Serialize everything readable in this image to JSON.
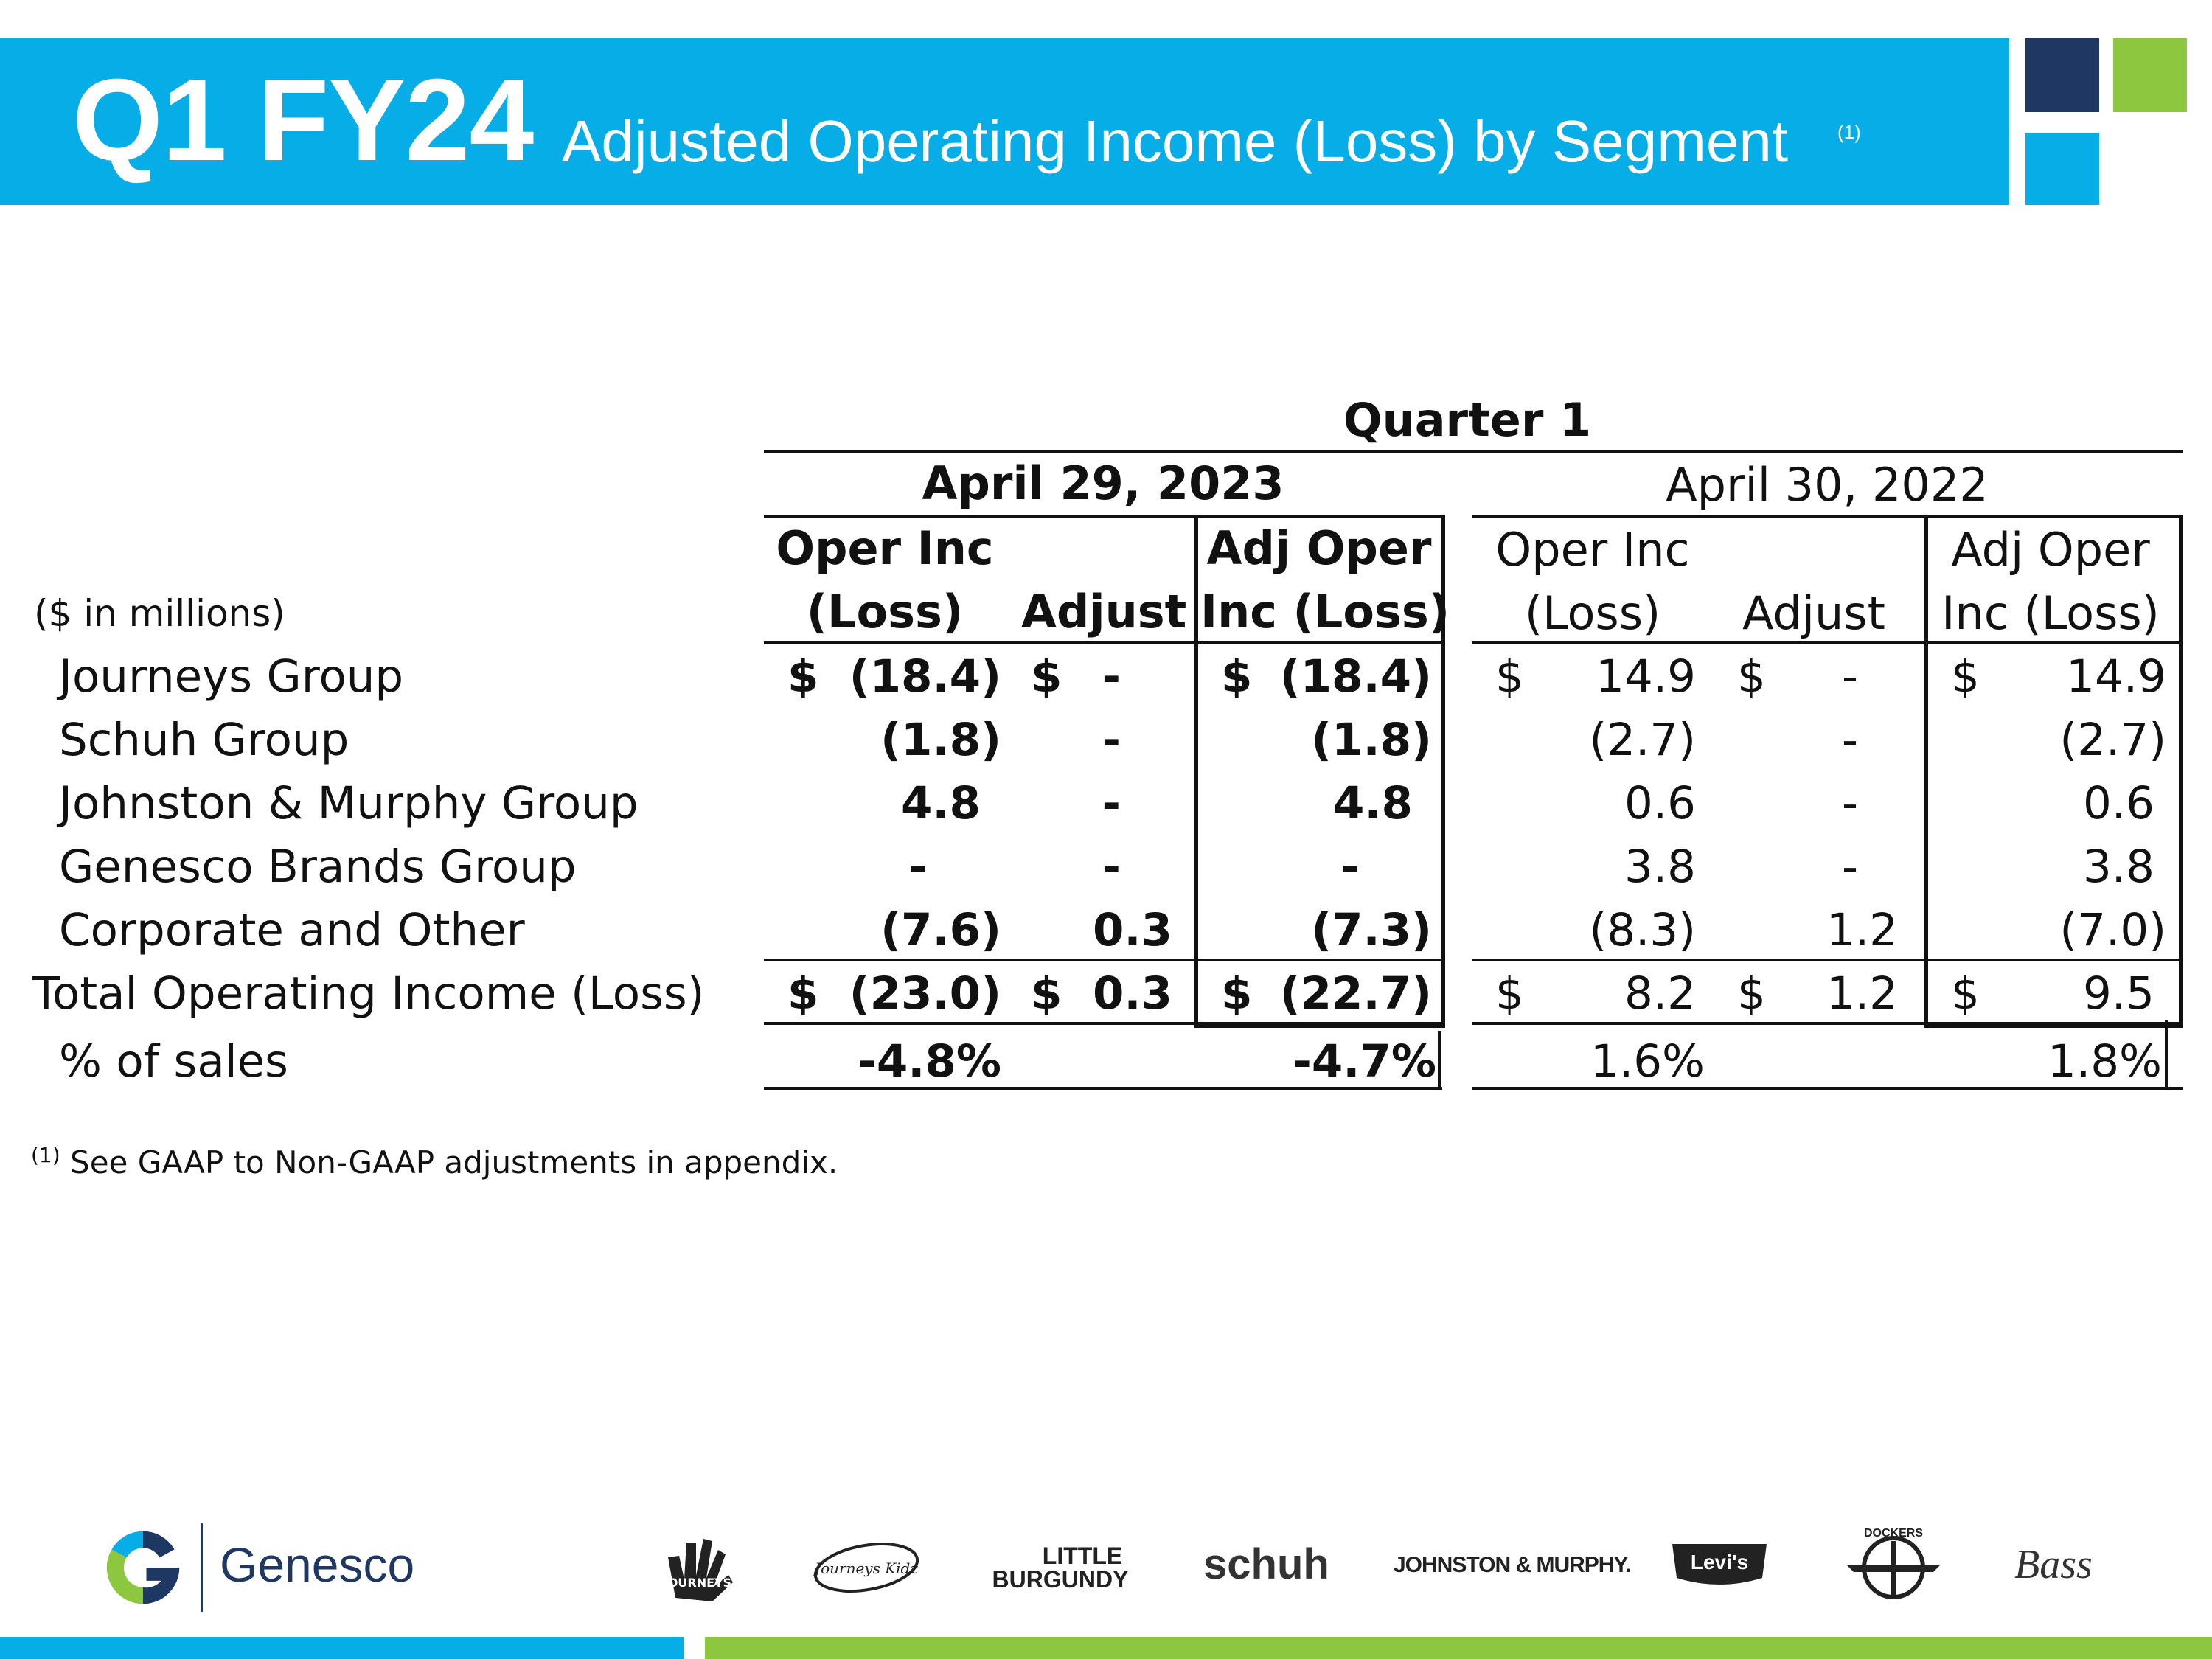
{
  "title": {
    "main": "Q1 FY24",
    "sub": "Adjusted Operating Income (Loss) by Segment",
    "note_marker": "(1)"
  },
  "table": {
    "quarter_label": "Quarter 1",
    "units_label": "($ in millions)",
    "period_2023": "April 29, 2023",
    "period_2022": "April 30, 2022",
    "col_headers": {
      "oper_l1": "Oper Inc",
      "oper_l2": "(Loss)",
      "adjust": "Adjust",
      "adjoper_l1": "Adj Oper",
      "adjoper_l2": "Inc (Loss)"
    },
    "rows": [
      {
        "label": "Journeys Group",
        "oper_2023": "(18.4)",
        "adj_2023": "-",
        "adjoper_2023": "(18.4)",
        "oper_2022": "14.9",
        "adj_2022": "-",
        "adjoper_2022": "14.9"
      },
      {
        "label": "Schuh Group",
        "oper_2023": "(1.8)",
        "adj_2023": "-",
        "adjoper_2023": "(1.8)",
        "oper_2022": "(2.7)",
        "adj_2022": "-",
        "adjoper_2022": "(2.7)"
      },
      {
        "label": "Johnston & Murphy Group",
        "oper_2023": "4.8",
        "adj_2023": "-",
        "adjoper_2023": "4.8",
        "oper_2022": "0.6",
        "adj_2022": "-",
        "adjoper_2022": "0.6"
      },
      {
        "label": "Genesco Brands Group",
        "oper_2023": "-",
        "adj_2023": "-",
        "adjoper_2023": "-",
        "oper_2022": "3.8",
        "adj_2022": "-",
        "adjoper_2022": "3.8"
      },
      {
        "label": "Corporate and Other",
        "oper_2023": "(7.6)",
        "adj_2023": "0.3",
        "adjoper_2023": "(7.3)",
        "oper_2022": "(8.3)",
        "adj_2022": "1.2",
        "adjoper_2022": "(7.0)"
      }
    ],
    "total": {
      "label": "Total Operating Income (Loss)",
      "oper_2023": "(23.0)",
      "adj_2023": "0.3",
      "adjoper_2023": "(22.7)",
      "oper_2022": "8.2",
      "adj_2022": "1.2",
      "adjoper_2022": "9.5"
    },
    "pct": {
      "label": "% of sales",
      "oper_2023": "-4.8%",
      "adjoper_2023": "-4.7%",
      "oper_2022": "1.6%",
      "adjoper_2022": "1.8%"
    },
    "currency_symbol": "$"
  },
  "footnote": {
    "marker": "(1)",
    "text": "See GAAP to Non-GAAP adjustments in appendix."
  },
  "footer": {
    "company": "Genesco",
    "logo_letter": "G",
    "brands": {
      "journeys": "JOURNEYS",
      "journeys_kidz": "Journeys Kidz",
      "little_burgundy_1": "LITTLE",
      "little_burgundy_2": "BURGUNDY",
      "schuh": "schuh",
      "johnston_murphy": "JOHNSTON & MURPHY.",
      "levis": "Levi's",
      "dockers": "DOCKERS",
      "bass": "Bass"
    },
    "colors": {
      "blue": "#06ADE6",
      "green": "#8DC63F",
      "navy": "#1F3863"
    }
  }
}
